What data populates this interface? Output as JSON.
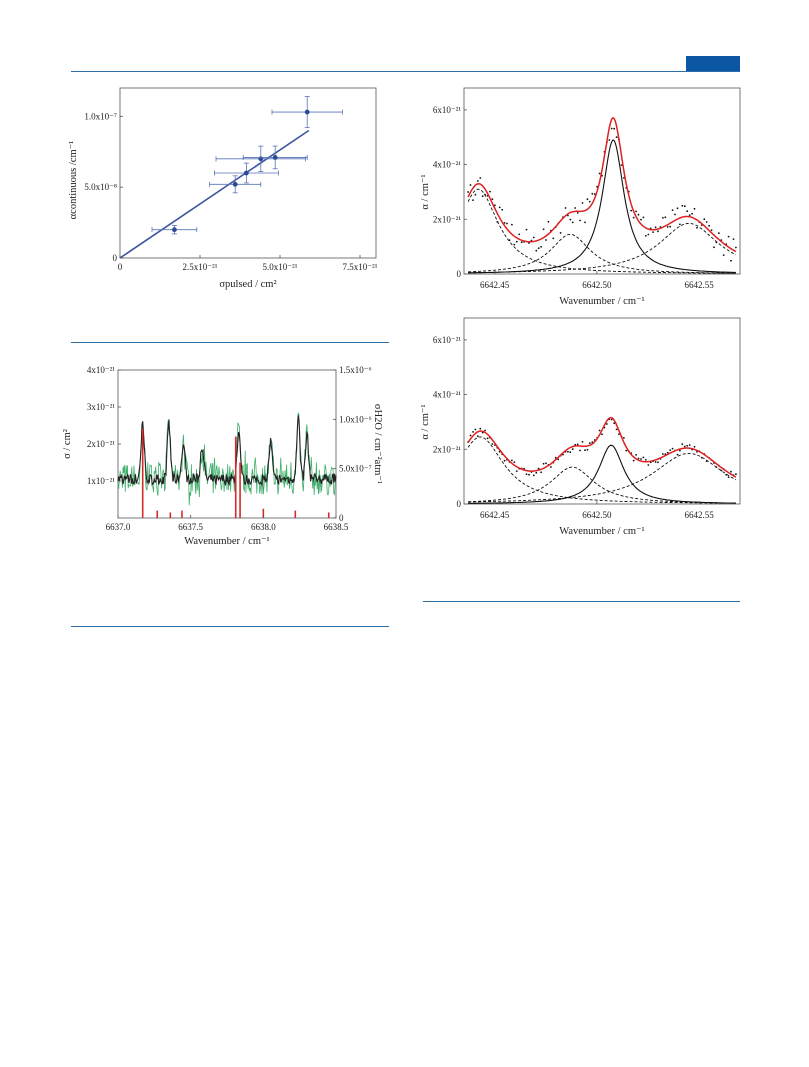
{
  "page": {
    "header_bar_color": "#0b57a4",
    "rule_color": "#2f6fa8"
  },
  "figures": {
    "fig_top_left": {
      "xlabel": "σpulsed / cm²",
      "ylabel": "αcontinuous /cm⁻¹",
      "x_ticks": [
        "0",
        "2.5x10⁻²¹",
        "5.0x10⁻²¹",
        "7.5x10⁻²¹"
      ],
      "y_ticks": [
        "0",
        "5.0x10⁻⁸",
        "1.0x10⁻⁷"
      ]
    },
    "fig_bottom_left": {
      "xlabel": "Wavenumber / cm⁻¹",
      "ylabel_left": "σ / cm²",
      "ylabel_right": "σH2O / cm⁻²atm⁻¹",
      "x_ticks": [
        "6637.0",
        "6637.5",
        "6638.0",
        "6638.5"
      ],
      "y_ticks_left": [
        "1x10⁻²¹",
        "2x10⁻²¹",
        "3x10⁻²¹",
        "4x10⁻²¹"
      ],
      "y_ticks_right": [
        "0",
        "5.0x10⁻⁷",
        "1.0x10⁻⁶",
        "1.5x10⁻⁶"
      ]
    },
    "fig_top_right": {
      "xlabel": "Wavenumber / cm⁻¹",
      "ylabel": "α / cm⁻¹",
      "x_ticks": [
        "6642.45",
        "6642.50",
        "6642.55"
      ],
      "y_ticks": [
        "0",
        "2x10⁻²¹",
        "4x10⁻²¹",
        "6x10⁻²¹"
      ]
    },
    "fig_bottom_right": {
      "xlabel": "Wavenumber / cm⁻¹",
      "ylabel": "α / cm⁻¹",
      "x_ticks": [
        "6642.45",
        "6642.50",
        "6642.55"
      ],
      "y_ticks": [
        "0",
        "2x10⁻²¹",
        "4x10⁻²¹",
        "6x10⁻²¹"
      ]
    }
  },
  "chart_data": [
    {
      "type": "scatter",
      "xlabel": "σpulsed / cm²",
      "ylabel": "αcontinuous /cm⁻¹",
      "xlim": [
        0,
        8e-21
      ],
      "ylim": [
        0,
        1.2e-07
      ],
      "points": [
        {
          "x": 1.7e-21,
          "y": 2e-08,
          "xerr": 7e-22,
          "yerr": 3e-09
        },
        {
          "x": 3.6e-21,
          "y": 5.2e-08,
          "xerr": 8e-22,
          "yerr": 6e-09
        },
        {
          "x": 3.95e-21,
          "y": 6e-08,
          "xerr": 1e-21,
          "yerr": 7e-09
        },
        {
          "x": 4.4e-21,
          "y": 7e-08,
          "xerr": 1.4e-21,
          "yerr": 9e-09
        },
        {
          "x": 4.85e-21,
          "y": 7.1e-08,
          "xerr": 1e-21,
          "yerr": 8e-09
        },
        {
          "x": 5.85e-21,
          "y": 1.03e-07,
          "xerr": 1.1e-21,
          "yerr": 1.1e-08
        }
      ],
      "fit_line": {
        "x": [
          0,
          5.9e-21
        ],
        "y": [
          0,
          9e-08
        ]
      }
    },
    {
      "type": "line",
      "xlabel": "Wavenumber / cm⁻¹",
      "xlim": [
        6637.0,
        6638.5
      ],
      "ylim_left": [
        0,
        4e-21
      ],
      "ylim_right": [
        0,
        1.5e-06
      ],
      "peaks": [
        6637.17,
        6637.35,
        6637.45,
        6637.58,
        6637.83,
        6638.05,
        6638.24,
        6638.3
      ],
      "red_sticks": {
        "x": [
          6637.17,
          6637.27,
          6637.36,
          6637.44,
          6637.81,
          6637.84,
          6638.0,
          6638.22,
          6638.45
        ],
        "y": [
          2.4e-21,
          2e-22,
          1.5e-22,
          2e-22,
          2.2e-21,
          1.5e-21,
          2.5e-22,
          2e-22,
          1.5e-22
        ]
      }
    },
    {
      "type": "line",
      "xlabel": "Wavenumber / cm⁻¹",
      "ylabel": "α / cm⁻¹",
      "xlim": [
        6642.435,
        6642.57
      ],
      "ylim": [
        0,
        6.8e-21
      ],
      "components": [
        {
          "center": 6642.442,
          "amp": 3.1e-21,
          "width": 0.012,
          "style": "dashed"
        },
        {
          "center": 6642.487,
          "amp": 1.45e-21,
          "width": 0.012,
          "style": "dashed"
        },
        {
          "center": 6642.508,
          "amp": 4.9e-21,
          "width": 0.0065,
          "style": "solid"
        },
        {
          "center": 6642.545,
          "amp": 1.85e-21,
          "width": 0.018,
          "style": "dashed"
        }
      ]
    },
    {
      "type": "line",
      "xlabel": "Wavenumber / cm⁻¹",
      "ylabel": "α / cm⁻¹",
      "xlim": [
        6642.435,
        6642.57
      ],
      "ylim": [
        0,
        6.8e-21
      ],
      "components": [
        {
          "center": 6642.443,
          "amp": 2.45e-21,
          "width": 0.014,
          "style": "dashed"
        },
        {
          "center": 6642.488,
          "amp": 1.35e-21,
          "width": 0.013,
          "style": "dashed"
        },
        {
          "center": 6642.507,
          "amp": 2.15e-21,
          "width": 0.0075,
          "style": "solid"
        },
        {
          "center": 6642.545,
          "amp": 1.85e-21,
          "width": 0.022,
          "style": "dashed"
        }
      ]
    }
  ]
}
